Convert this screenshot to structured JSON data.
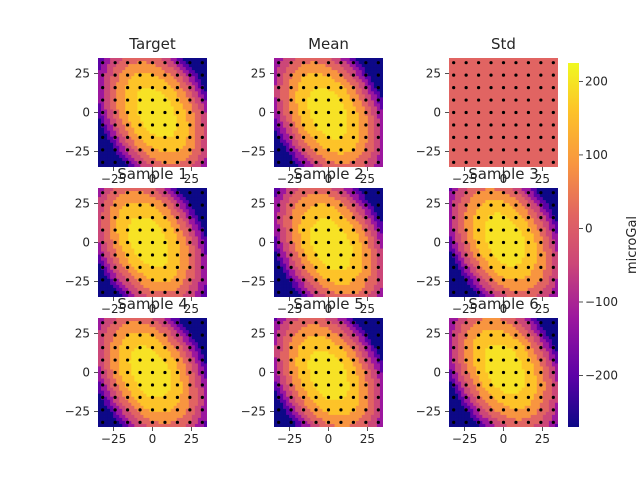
{
  "chart_data": {
    "type": "contour",
    "panels": [
      {
        "id": "target",
        "title": "Target",
        "kind": "field",
        "seed": 1
      },
      {
        "id": "mean",
        "title": "Mean",
        "kind": "field",
        "seed": 2
      },
      {
        "id": "std",
        "title": "Std",
        "kind": "flat",
        "seed": 0
      },
      {
        "id": "sample-1",
        "title": "Sample 1",
        "kind": "field",
        "seed": 3
      },
      {
        "id": "sample-2",
        "title": "Sample 2",
        "kind": "field",
        "seed": 4
      },
      {
        "id": "sample-3",
        "title": "Sample 3",
        "kind": "field",
        "seed": 5
      },
      {
        "id": "sample-4",
        "title": "Sample 4",
        "kind": "field",
        "seed": 6
      },
      {
        "id": "sample-5",
        "title": "Sample 5",
        "kind": "field",
        "seed": 7
      },
      {
        "id": "sample-6",
        "title": "Sample 6",
        "kind": "field",
        "seed": 8
      }
    ],
    "x_ticks": [
      "−25",
      "0",
      "25"
    ],
    "y_ticks": [
      "25",
      "0",
      "−25"
    ],
    "xlim": [
      -35,
      35
    ],
    "ylim": [
      -35,
      35
    ],
    "grid_points": 9,
    "station_spacing": 8,
    "colorbar": {
      "label": "microGal",
      "ticks": [
        "200",
        "100",
        "0",
        "−100",
        "−200"
      ],
      "tick_values": [
        200,
        100,
        0,
        -100,
        -200
      ],
      "range": [
        -270,
        225
      ]
    },
    "colormap": "plasma",
    "levels": [
      -270,
      -205,
      -140,
      -75,
      -10,
      55,
      120,
      185,
      225
    ],
    "level_colors": [
      "#0d0887",
      "#5c01a6",
      "#9c179e",
      "#cc4778",
      "#e16462",
      "#f89540",
      "#fdc328",
      "#f7e225"
    ],
    "flat_color": "#e16462"
  }
}
